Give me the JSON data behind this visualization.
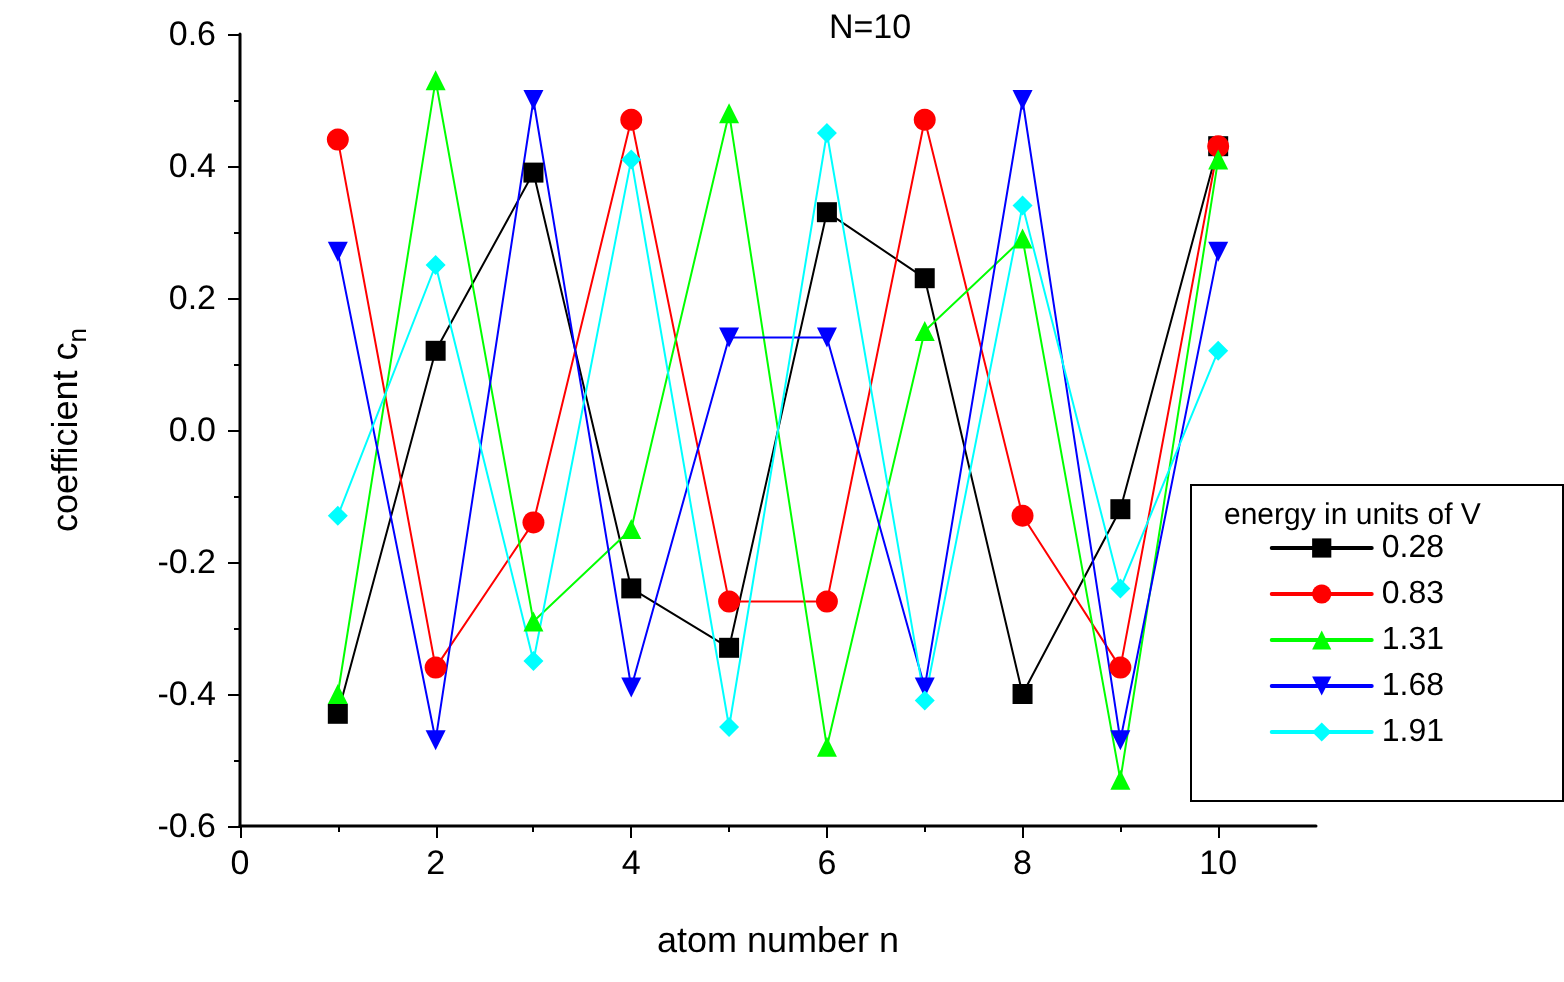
{
  "chart_data": {
    "type": "line",
    "title": "N=10",
    "xlabel": "atom number n",
    "ylabel": "coefficient c$_{n}$",
    "legend_title": "energy in units of V",
    "x": [
      1,
      2,
      3,
      4,
      5,
      6,
      7,
      8,
      9,
      10
    ],
    "series": [
      {
        "name": "0.28",
        "color": "#000000",
        "marker": "square",
        "values": [
          -0.43,
          0.12,
          0.39,
          -0.24,
          -0.33,
          0.33,
          0.23,
          -0.4,
          -0.12,
          0.43
        ]
      },
      {
        "name": "0.83",
        "color": "#ff0000",
        "marker": "circle",
        "values": [
          0.44,
          -0.36,
          -0.14,
          0.47,
          -0.26,
          -0.26,
          0.47,
          -0.13,
          -0.36,
          0.43
        ]
      },
      {
        "name": "1.31",
        "color": "#00ff00",
        "marker": "triangle",
        "values": [
          -0.4,
          0.53,
          -0.29,
          -0.15,
          0.48,
          -0.48,
          0.15,
          0.29,
          -0.53,
          0.41
        ]
      },
      {
        "name": "1.68",
        "color": "#0000ff",
        "marker": "triangle-down",
        "values": [
          0.27,
          -0.47,
          0.5,
          -0.39,
          0.14,
          0.14,
          -0.39,
          0.5,
          -0.47,
          0.27
        ]
      },
      {
        "name": "1.91",
        "color": "#00ffff",
        "marker": "diamond",
        "values": [
          -0.13,
          0.25,
          -0.35,
          0.41,
          -0.45,
          0.45,
          -0.41,
          0.34,
          -0.24,
          0.12
        ]
      }
    ],
    "xlim": [
      0,
      11
    ],
    "xticks": [
      0,
      2,
      4,
      6,
      8,
      10
    ],
    "ylim": [
      -0.6,
      0.6
    ],
    "yticks": [
      {
        "value": -0.6,
        "label": "-0.6"
      },
      {
        "value": -0.4,
        "label": "-0.4"
      },
      {
        "value": -0.2,
        "label": "-0.2"
      },
      {
        "value": 0,
        "label": "0.0"
      },
      {
        "value": 0.2,
        "label": "0.2"
      },
      {
        "value": 0.4,
        "label": "0.4"
      },
      {
        "value": 0.6,
        "label": "0.6"
      }
    ],
    "grid": false,
    "legend": "bottom right",
    "line_style": "solid"
  }
}
